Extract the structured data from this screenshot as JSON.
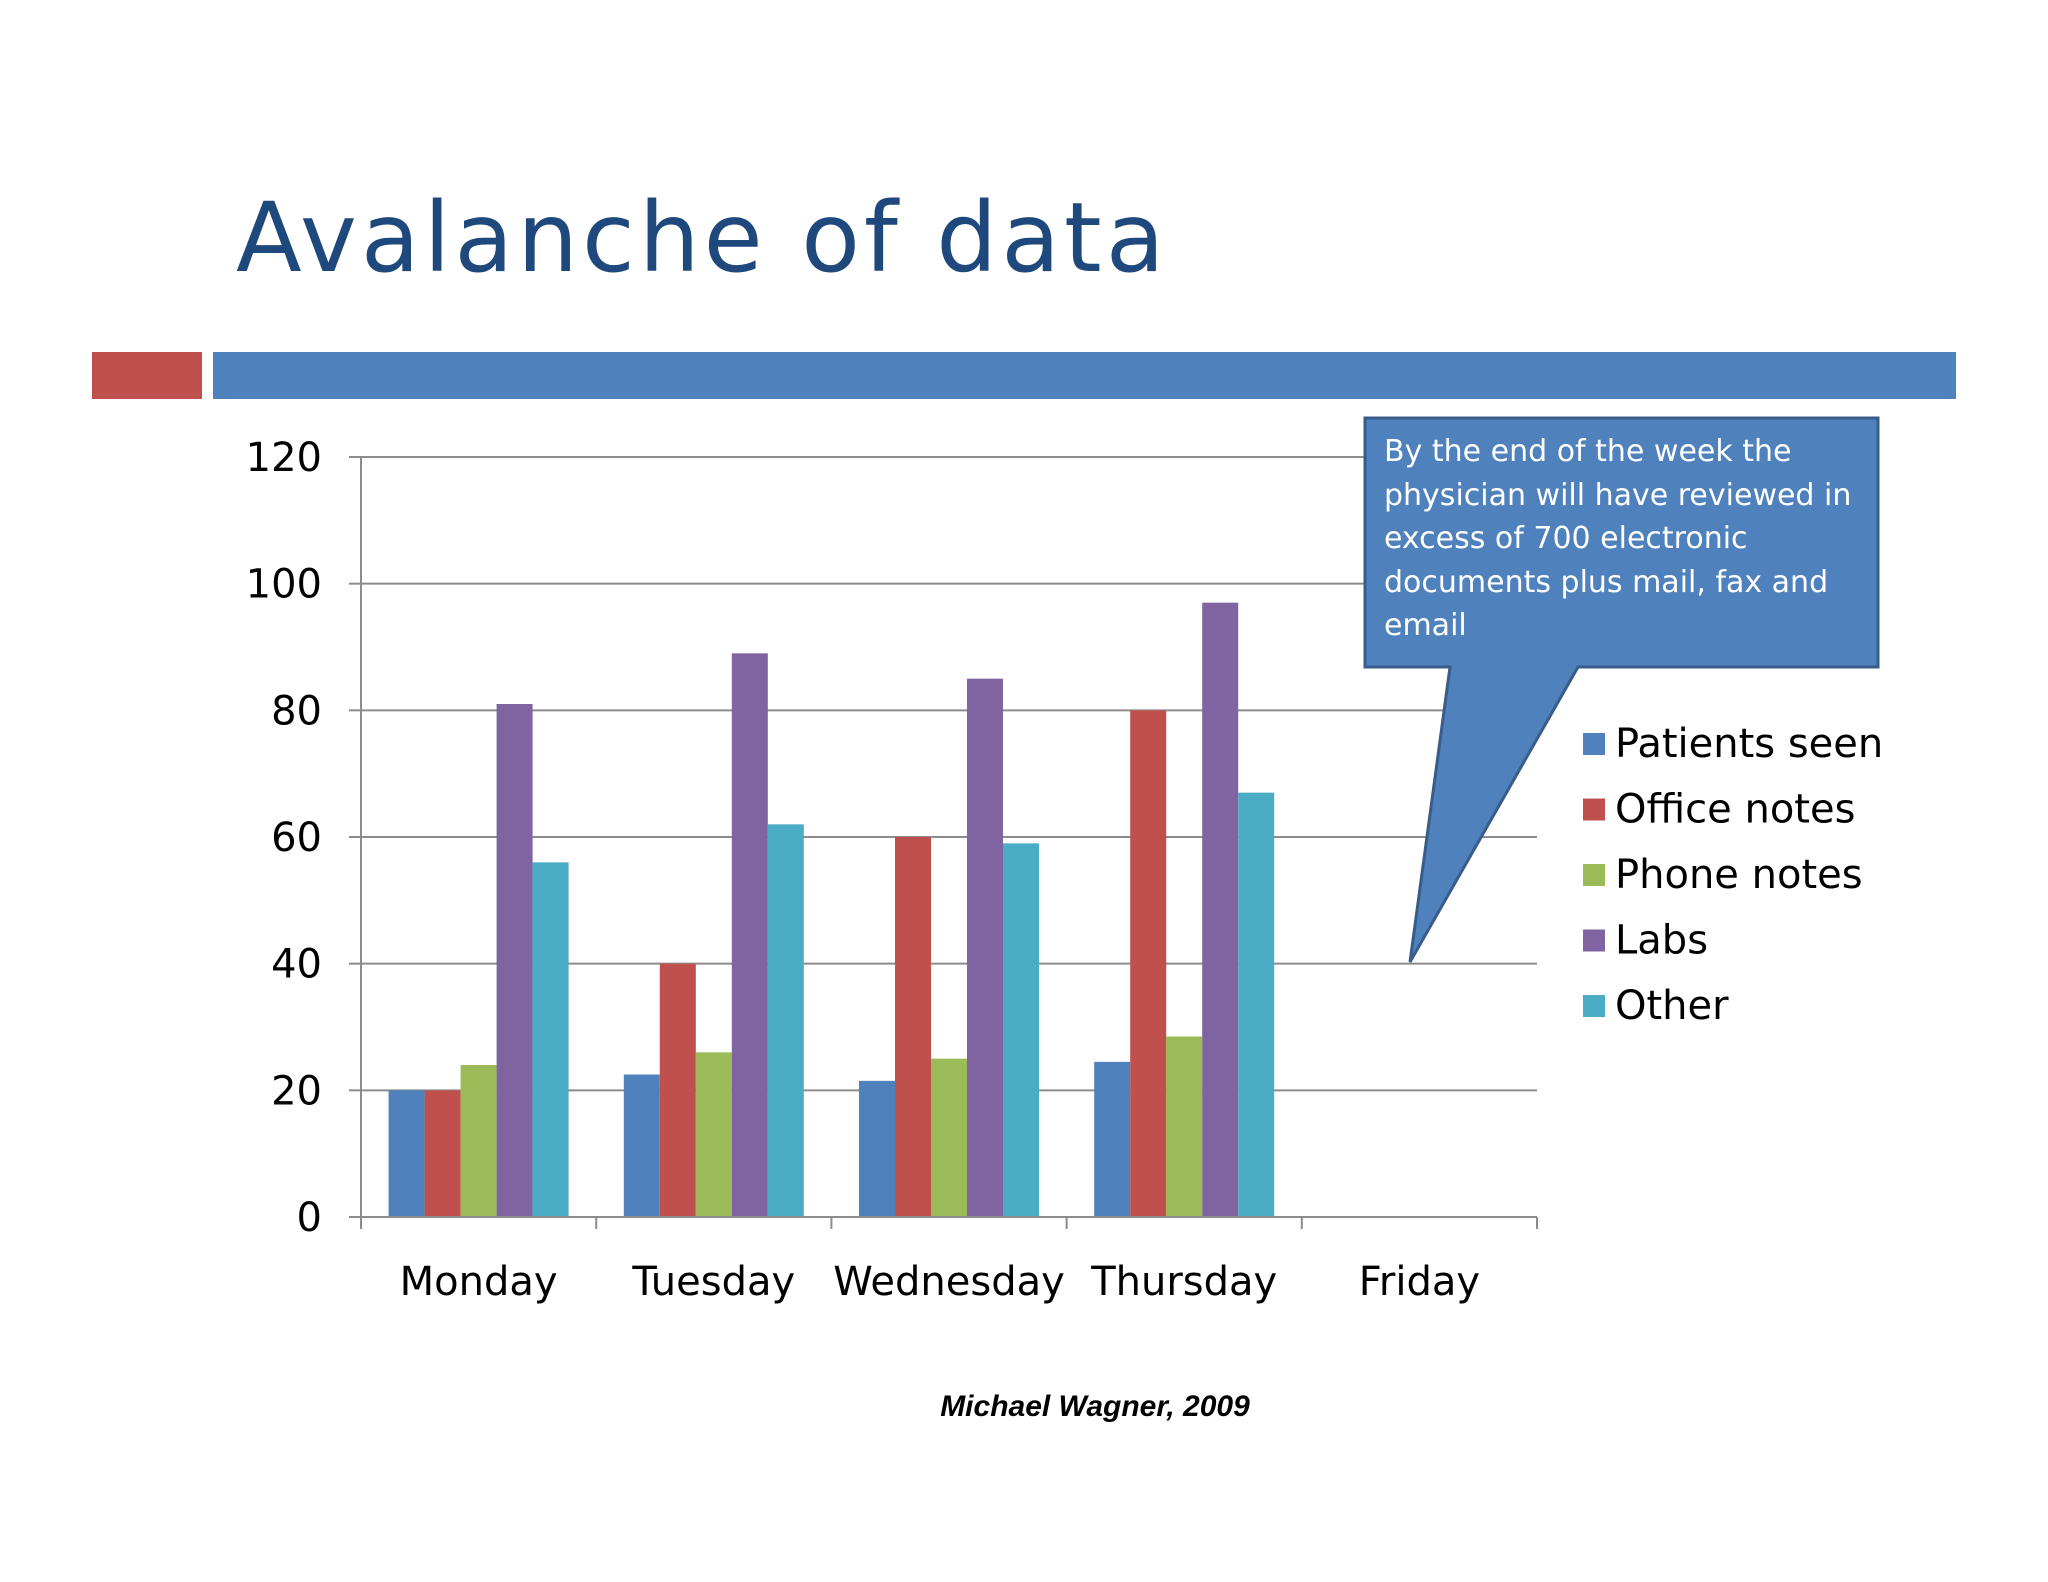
{
  "slide": {
    "title": "Avalanche of data",
    "credit": "Michael Wagner, 2009",
    "accent_colors": {
      "left_bar": "#c0504d",
      "main_bar": "#4f81bd"
    },
    "title_color": "#1f497d"
  },
  "callout": {
    "lines": [
      "By the end of the week the",
      "physician will have reviewed in",
      "excess of  700 electronic",
      "documents plus mail, fax and",
      "email"
    ],
    "fill": "#4f81bd",
    "stroke": "#385d8a"
  },
  "chart_data": {
    "type": "bar",
    "title": "",
    "xlabel": "",
    "ylabel": "",
    "ylim": [
      0,
      120
    ],
    "yticks": [
      0,
      20,
      40,
      60,
      80,
      100,
      120
    ],
    "grid": true,
    "legend_position": "right",
    "categories": [
      "Monday",
      "Tuesday",
      "Wednesday",
      "Thursday",
      "Friday"
    ],
    "series": [
      {
        "name": "Patients seen",
        "color": "#4f81bd",
        "values": [
          20,
          22.5,
          21.5,
          24.5,
          null
        ]
      },
      {
        "name": "Office notes",
        "color": "#c0504d",
        "values": [
          20,
          40,
          60,
          80,
          null
        ]
      },
      {
        "name": "Phone notes",
        "color": "#9bbb59",
        "values": [
          24,
          26,
          25,
          28.5,
          null
        ]
      },
      {
        "name": "Labs",
        "color": "#8064a2",
        "values": [
          81,
          89,
          85,
          97,
          null
        ]
      },
      {
        "name": "Other",
        "color": "#4bacc6",
        "values": [
          56,
          62,
          59,
          67,
          null
        ]
      }
    ]
  }
}
